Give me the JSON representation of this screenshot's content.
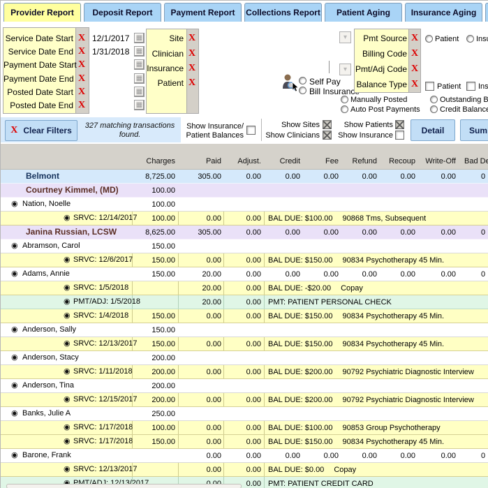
{
  "tabs": [
    {
      "label": "Provider Report",
      "active": true
    },
    {
      "label": "Deposit Report",
      "active": false
    },
    {
      "label": "Payment Report",
      "active": false
    },
    {
      "label": "Collections Report",
      "active": false
    },
    {
      "label": "Patient Aging",
      "active": false
    },
    {
      "label": "Insurance Aging",
      "active": false
    },
    {
      "label": "C",
      "active": false
    }
  ],
  "filters": {
    "date_filters": [
      {
        "label": "Service Date Start",
        "value": "12/1/2017"
      },
      {
        "label": "Service Date End",
        "value": "1/31/2018"
      },
      {
        "label": "Payment Date Start",
        "value": ""
      },
      {
        "label": "Payment Date End",
        "value": ""
      },
      {
        "label": "Posted Date Start",
        "value": ""
      },
      {
        "label": "Posted Date End",
        "value": ""
      }
    ],
    "entity_filters": [
      {
        "label": "Site"
      },
      {
        "label": "Clinician"
      },
      {
        "label": "Insurance"
      },
      {
        "label": "Patient"
      }
    ],
    "code_filters": [
      {
        "label": "Pmt Source"
      },
      {
        "label": "Billing Code"
      },
      {
        "label": "Pmt/Adj Code"
      },
      {
        "label": "Balance Type"
      }
    ],
    "self_pay_label": "Self Pay",
    "bill_insurance_label": "Bill Insurance",
    "pmt_source_patient_label": "Patient",
    "pmt_source_insurance_label": "Insu",
    "balance_patient_label": "Patient",
    "balance_insurance_label": "Insu",
    "manually_posted_label": "Manually Posted",
    "auto_post_label": "Auto Post Payments",
    "outstanding_label": "Outstanding Ba",
    "credit_balance_label": "Credit Balance"
  },
  "toolbar": {
    "clear_filters_label": "Clear Filters",
    "match_line1": "327 matching transactions",
    "match_line2": "found.",
    "show_ins_line1": "Show Insurance/",
    "show_ins_line2": "Patient Balances",
    "show_sites_label": "Show Sites",
    "show_clinicians_label": "Show Clinicians",
    "show_patients_label": "Show Patients",
    "show_insurance_label": "Show Insurance",
    "detail_label": "Detail",
    "summary_label": "Sum"
  },
  "table": {
    "columns": [
      "Charges",
      "Paid",
      "Adjust.",
      "Credit",
      "Fee",
      "Refund",
      "Recoup",
      "Write-Off",
      "Bad De"
    ],
    "rows": [
      {
        "type": "site",
        "label": "Belmont",
        "values": [
          "8,725.00",
          "305.00",
          "0.00",
          "0.00",
          "0.00",
          "0.00",
          "0.00",
          "0.00",
          "0"
        ]
      },
      {
        "type": "clinician",
        "label": "Courtney Kimmel, (MD)",
        "values": [
          "100.00"
        ]
      },
      {
        "type": "patient",
        "label": "Nation, Noelle",
        "values": [
          "100.00"
        ]
      },
      {
        "type": "srvc",
        "label": "SRVC: 12/14/2017",
        "values": [
          "100.00",
          "0.00",
          "0.00"
        ],
        "bal": "BAL DUE: $100.00",
        "desc": "90868 Tms, Subsequent"
      },
      {
        "type": "clinician",
        "label": "Janina Russian, LCSW",
        "values": [
          "8,625.00",
          "305.00",
          "0.00",
          "0.00",
          "0.00",
          "0.00",
          "0.00",
          "0.00",
          "0"
        ]
      },
      {
        "type": "patient",
        "label": "Abramson, Carol",
        "values": [
          "150.00"
        ]
      },
      {
        "type": "srvc",
        "label": "SRVC: 12/6/2017",
        "values": [
          "150.00",
          "0.00",
          "0.00"
        ],
        "bal": "BAL DUE: $150.00",
        "desc": "90834 Psychotherapy 45 Min."
      },
      {
        "type": "patient",
        "label": "Adams, Annie",
        "values": [
          "150.00",
          "20.00",
          "0.00",
          "0.00",
          "0.00",
          "0.00",
          "0.00",
          "0.00",
          "0"
        ]
      },
      {
        "type": "srvc",
        "label": "SRVC: 1/5/2018",
        "values": [
          "",
          "20.00",
          "0.00"
        ],
        "bal": "BAL DUE: -$20.00",
        "desc": "Copay"
      },
      {
        "type": "pmt",
        "label": "PMT/ADJ: 1/5/2018",
        "values": [
          "",
          "20.00",
          "0.00"
        ],
        "bal": "PMT: PATIENT PERSONAL CHECK",
        "desc": ""
      },
      {
        "type": "srvc",
        "label": "SRVC: 1/4/2018",
        "values": [
          "150.00",
          "0.00",
          "0.00"
        ],
        "bal": "BAL DUE: $150.00",
        "desc": "90834 Psychotherapy 45 Min."
      },
      {
        "type": "patient",
        "label": "Anderson, Sally",
        "values": [
          "150.00"
        ]
      },
      {
        "type": "srvc",
        "label": "SRVC: 12/13/2017",
        "values": [
          "150.00",
          "0.00",
          "0.00"
        ],
        "bal": "BAL DUE: $150.00",
        "desc": "90834 Psychotherapy 45 Min."
      },
      {
        "type": "patient",
        "label": "Anderson, Stacy",
        "values": [
          "200.00"
        ]
      },
      {
        "type": "srvc",
        "label": "SRVC: 1/11/2018",
        "values": [
          "200.00",
          "0.00",
          "0.00"
        ],
        "bal": "BAL DUE: $200.00",
        "desc": "90792 Psychiatric Diagnostic Interview"
      },
      {
        "type": "patient",
        "label": "Anderson, Tina",
        "values": [
          "200.00"
        ]
      },
      {
        "type": "srvc",
        "label": "SRVC: 12/15/2017",
        "values": [
          "200.00",
          "0.00",
          "0.00"
        ],
        "bal": "BAL DUE: $200.00",
        "desc": "90792 Psychiatric Diagnostic Interview"
      },
      {
        "type": "patient",
        "label": "Banks, Julie A",
        "values": [
          "250.00"
        ]
      },
      {
        "type": "srvc",
        "label": "SRVC: 1/17/2018",
        "values": [
          "100.00",
          "0.00",
          "0.00"
        ],
        "bal": "BAL DUE: $100.00",
        "desc": "90853 Group Psychotherapy"
      },
      {
        "type": "srvc",
        "label": "SRVC: 1/17/2018",
        "values": [
          "150.00",
          "0.00",
          "0.00"
        ],
        "bal": "BAL DUE: $150.00",
        "desc": "90834 Psychotherapy 45 Min."
      },
      {
        "type": "patient",
        "label": "Barone, Frank",
        "values": [
          "",
          "0.00",
          "0.00",
          "0.00",
          "0.00",
          "0.00",
          "0.00",
          "0.00",
          "0"
        ]
      },
      {
        "type": "srvc",
        "label": "SRVC: 12/13/2017",
        "values": [
          "",
          "0.00",
          "0.00"
        ],
        "bal": "BAL DUE: $0.00",
        "desc": "Copay"
      },
      {
        "type": "pmt",
        "label": "PMT/ADJ: 12/13/2017",
        "values": [
          "",
          "0.00",
          "0.00"
        ],
        "bal": "PMT: PATIENT CREDIT CARD",
        "desc": ""
      }
    ]
  }
}
